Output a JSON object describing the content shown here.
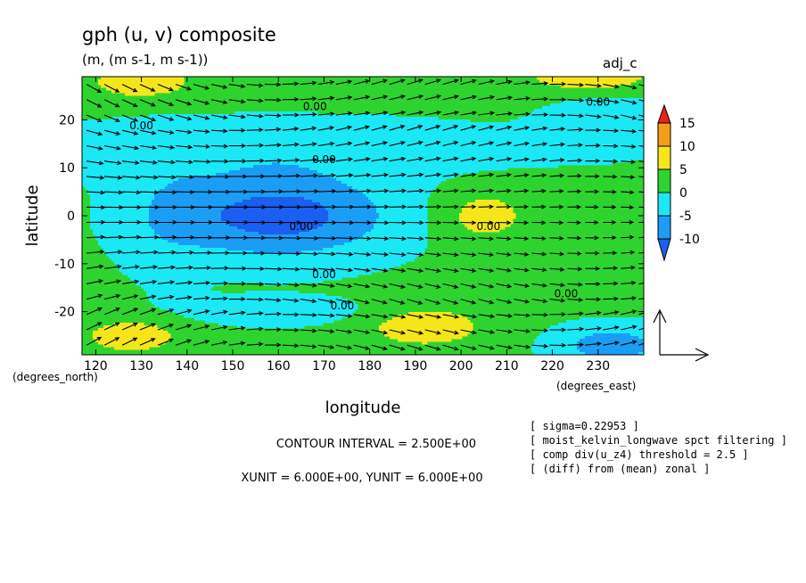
{
  "chart_data": {
    "type": "contour-vector",
    "title": "gph (u, v) composite",
    "units": "(m, (m s-1, m s-1))",
    "corner_label": "adj_c",
    "xlabel": "longitude",
    "ylabel": "latitude",
    "x_units": "(degrees_east)",
    "y_units": "(degrees_north)",
    "xlim": [
      117,
      240
    ],
    "ylim": [
      -29,
      29
    ],
    "x_ticks": [
      120,
      130,
      140,
      150,
      160,
      170,
      180,
      190,
      200,
      210,
      220,
      230
    ],
    "y_ticks": [
      20,
      10,
      0,
      -10,
      -20
    ],
    "colorbar": {
      "levels": [
        15,
        10,
        5,
        0,
        -5,
        -10
      ],
      "colors": {
        "gt15": "#e8231a",
        "10_15": "#f59d1a",
        "5_10": "#f5e61a",
        "0_5": "#2ed42e",
        "m5_0": "#1ae8f5",
        "m10_m5": "#1a9ef5",
        "lt_m10": "#1a5ff0"
      }
    },
    "contour_labels": [
      "0.00",
      "0.00",
      "0.00",
      "0.00",
      "0.00",
      "0.00",
      "0.00",
      "0.00",
      "0.00"
    ],
    "contour_interval_text": "CONTOUR INTERVAL = 2.500E+00",
    "vector_unit_text": "XUNIT = 6.000E+00, YUNIT = 6.000E+00",
    "notes": [
      "[ sigma=0.22953 ]",
      "[ moist_kelvin_longwave spct filtering ]",
      "[ comp div(u_z4) threshold = 2.5 ]",
      "[ (diff) from (mean) zonal ]"
    ],
    "field_features": [
      {
        "kind": "low",
        "lon": 160,
        "lat": 0,
        "value": -12
      },
      {
        "kind": "high",
        "lon": 205,
        "lat": 0,
        "value": 6
      },
      {
        "kind": "high",
        "lon": 190,
        "lat": -22,
        "value": 6
      },
      {
        "kind": "high",
        "lon": 130,
        "lat": -25,
        "value": 6
      },
      {
        "kind": "high",
        "lon": 130,
        "lat": 27,
        "value": 6
      },
      {
        "kind": "high",
        "lon": 225,
        "lat": 28,
        "value": 7
      },
      {
        "kind": "low",
        "lon": 232,
        "lat": -26,
        "value": -7
      },
      {
        "kind": "low",
        "lon": 230,
        "lat": 20,
        "value": -3
      }
    ]
  }
}
